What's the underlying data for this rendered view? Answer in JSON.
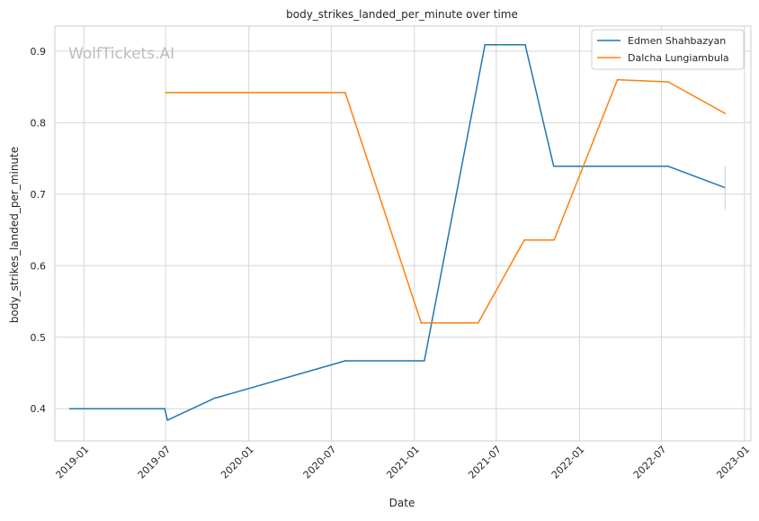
{
  "chart_data": {
    "type": "line",
    "title": "body_strikes_landed_per_minute over time",
    "xlabel": "Date",
    "ylabel": "body_strikes_landed_per_minute",
    "watermark": "WolfTickets.AI",
    "x_ticks": [
      "2019-01",
      "2019-07",
      "2020-01",
      "2020-07",
      "2021-01",
      "2021-07",
      "2022-01",
      "2022-07",
      "2023-01"
    ],
    "y_ticks": [
      0.4,
      0.5,
      0.6,
      0.7,
      0.8,
      0.9
    ],
    "xlim": [
      "2018-10-29",
      "2023-01-15"
    ],
    "ylim": [
      0.355,
      0.935
    ],
    "grid": true,
    "legend_position": "top-right",
    "series": [
      {
        "name": "Edmen Shahbazyan",
        "color": "#1f77b4",
        "points": [
          [
            "2018-12-01",
            0.4
          ],
          [
            "2019-06-29",
            0.4
          ],
          [
            "2019-07-05",
            0.384
          ],
          [
            "2019-10-18",
            0.415
          ],
          [
            "2019-10-25",
            0.416
          ],
          [
            "2020-08-01",
            0.467
          ],
          [
            "2021-01-23",
            0.467
          ],
          [
            "2021-06-06",
            0.909
          ],
          [
            "2021-09-03",
            0.909
          ],
          [
            "2021-11-05",
            0.739
          ],
          [
            "2022-07-16",
            0.739
          ],
          [
            "2022-11-19",
            0.709
          ]
        ]
      },
      {
        "name": "Dalcha Lungiambula",
        "color": "#ff7f0e",
        "points": [
          [
            "2019-07-01",
            0.842
          ],
          [
            "2020-08-01",
            0.842
          ],
          [
            "2021-01-16",
            0.52
          ],
          [
            "2021-05-22",
            0.52
          ],
          [
            "2021-09-01",
            0.636
          ],
          [
            "2021-11-06",
            0.636
          ],
          [
            "2022-03-26",
            0.86
          ],
          [
            "2022-07-16",
            0.857
          ],
          [
            "2022-11-19",
            0.813
          ]
        ]
      }
    ],
    "error_bar": {
      "date": "2022-11-19",
      "low": 0.679,
      "high": 0.739
    }
  }
}
